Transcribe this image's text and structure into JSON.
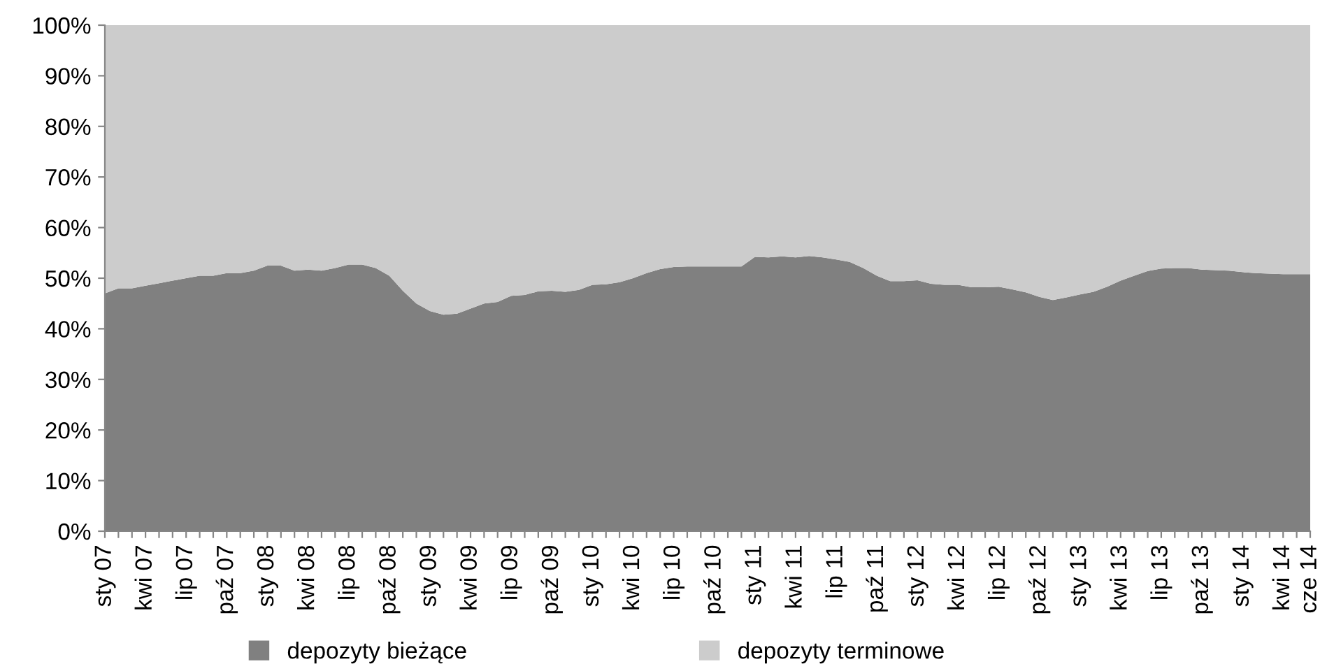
{
  "chart_data": {
    "type": "area",
    "stacked": true,
    "legend": "bottom",
    "grid": false,
    "ylim": [
      0,
      100
    ],
    "yticks": [
      {
        "value": 0,
        "label": "0%"
      },
      {
        "value": 10,
        "label": "10%"
      },
      {
        "value": 20,
        "label": "20%"
      },
      {
        "value": 30,
        "label": "30%"
      },
      {
        "value": 40,
        "label": "40%"
      },
      {
        "value": 50,
        "label": "50%"
      },
      {
        "value": 60,
        "label": "60%"
      },
      {
        "value": 70,
        "label": "70%"
      },
      {
        "value": 80,
        "label": "80%"
      },
      {
        "value": 90,
        "label": "90%"
      },
      {
        "value": 100,
        "label": "100%"
      }
    ],
    "categories": [
      "sty 07",
      null,
      null,
      "kwi 07",
      null,
      null,
      "lip 07",
      null,
      null,
      "paź 07",
      null,
      null,
      "sty 08",
      null,
      null,
      "kwi 08",
      null,
      null,
      "lip 08",
      null,
      null,
      "paź 08",
      null,
      null,
      "sty 09",
      null,
      null,
      "kwi 09",
      null,
      null,
      "lip 09",
      null,
      null,
      "paź 09",
      null,
      null,
      "sty 10",
      null,
      null,
      "kwi 10",
      null,
      null,
      "lip 10",
      null,
      null,
      "paź 10",
      null,
      null,
      "sty 11",
      null,
      null,
      "kwi 11",
      null,
      null,
      "lip 11",
      null,
      null,
      "paź 11",
      null,
      null,
      "sty 12",
      null,
      null,
      "kwi 12",
      null,
      null,
      "lip 12",
      null,
      null,
      "paź 12",
      null,
      null,
      "sty 13",
      null,
      null,
      "kwi 13",
      null,
      null,
      "lip 13",
      null,
      null,
      "paź 13",
      null,
      null,
      "sty 14",
      null,
      null,
      "kwi 14",
      null,
      "cze 14"
    ],
    "series": [
      {
        "name": "depozyty bieżące",
        "color": "#808080",
        "values": [
          47,
          48,
          48,
          48.5,
          49,
          49.5,
          50,
          50.5,
          50.5,
          51,
          51,
          51.5,
          52.5,
          52.5,
          51.5,
          51.7,
          51.5,
          52,
          52.7,
          52.7,
          52,
          50.5,
          47.5,
          45,
          43.5,
          42.8,
          43,
          44,
          45,
          45.3,
          46.5,
          46.7,
          47.4,
          47.5,
          47.3,
          47.7,
          48.7,
          48.8,
          49.2,
          50,
          51,
          51.8,
          52.2,
          52.3,
          52.3,
          52.3,
          52.3,
          52.3,
          54.2,
          54.1,
          54.3,
          54.1,
          54.4,
          54.1,
          53.7,
          53.2,
          52,
          50.5,
          49.4,
          49.4,
          49.6,
          48.9,
          48.7,
          48.7,
          48.2,
          48.2,
          48.3,
          47.8,
          47.2,
          46.3,
          45.7,
          46.2,
          46.8,
          47.3,
          48.3,
          49.5,
          50.5,
          51.4,
          51.9,
          52,
          52,
          51.7,
          51.6,
          51.5,
          51.2,
          51,
          50.9,
          50.8,
          50.8,
          50.8
        ]
      },
      {
        "name": "depozyty terminowe",
        "color": "#cccccc",
        "values": [
          53,
          52,
          52,
          51.5,
          51,
          50.5,
          50,
          49.5,
          49.5,
          49,
          49,
          48.5,
          47.5,
          47.5,
          48.5,
          48.3,
          48.5,
          48,
          47.3,
          47.3,
          48,
          49.5,
          52.5,
          55,
          56.5,
          57.2,
          57,
          56,
          55,
          54.7,
          53.5,
          53.3,
          52.6,
          52.5,
          52.7,
          52.3,
          51.3,
          51.2,
          50.8,
          50,
          49,
          48.2,
          47.8,
          47.7,
          47.7,
          47.7,
          47.7,
          47.7,
          45.8,
          45.9,
          45.7,
          45.9,
          45.6,
          45.9,
          46.3,
          46.8,
          48,
          49.5,
          50.6,
          50.6,
          50.4,
          51.1,
          51.3,
          51.3,
          51.8,
          51.8,
          51.7,
          52.2,
          52.8,
          53.7,
          54.3,
          53.8,
          53.2,
          52.7,
          51.7,
          50.5,
          49.5,
          48.6,
          48.1,
          48,
          48,
          48.3,
          48.4,
          48.5,
          48.8,
          49,
          49.1,
          49.2,
          49.2,
          49.2
        ]
      }
    ]
  }
}
